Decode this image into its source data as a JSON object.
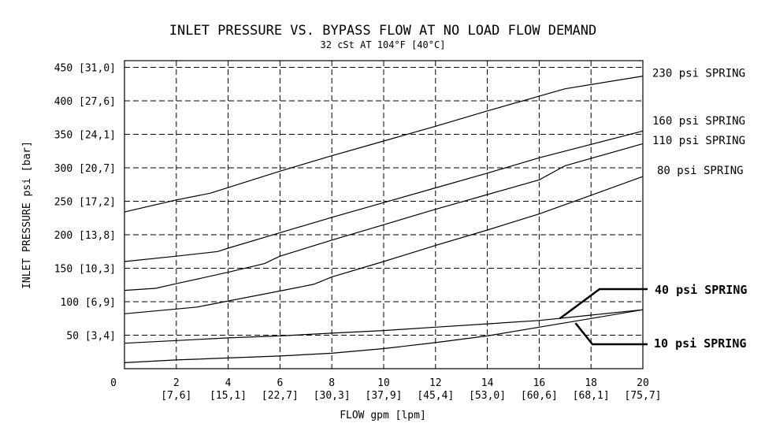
{
  "chart_data": {
    "type": "line",
    "title": "INLET PRESSURE VS. BYPASS FLOW AT NO LOAD FLOW DEMAND",
    "subtitle": "32 cSt AT 104°F [40°C]",
    "xlabel": "FLOW gpm [lpm]",
    "ylabel": "INLET PRESSURE psi [bar]",
    "xlim": [
      0,
      20
    ],
    "ylim": [
      0,
      460
    ],
    "grid": true,
    "x_ticks": [
      "0",
      "2",
      "4",
      "6",
      "8",
      "10",
      "12",
      "14",
      "16",
      "18",
      "20"
    ],
    "x_ticks_secondary": [
      "[7,6]",
      "[15,1]",
      "[22,7]",
      "[30,3]",
      "[37,9]",
      "[45,4]",
      "[53,0]",
      "[60,6]",
      "[68,1]",
      "[75,7]"
    ],
    "y_ticks": [
      "450 [31,0]",
      "400 [27,6]",
      "350 [24,1]",
      "300 [20,7]",
      "250 [17,2]",
      "200 [13,8]",
      "150 [10,3]",
      "100 [6,9]",
      "50 [3,4]"
    ],
    "series": [
      {
        "name": "230 psi SPRING",
        "x": [
          0,
          2,
          3.3,
          6,
          8,
          10,
          12,
          14,
          16,
          17,
          20
        ],
        "y": [
          234,
          252,
          262,
          295,
          318,
          340,
          362,
          385,
          407,
          418,
          437
        ]
      },
      {
        "name": "160 psi SPRING",
        "x": [
          0,
          2,
          3.6,
          4,
          6,
          8,
          10,
          12,
          14,
          16,
          17,
          20
        ],
        "y": [
          160,
          168,
          175,
          180,
          203,
          226,
          248,
          270,
          292,
          315,
          325,
          355
        ]
      },
      {
        "name": "110 psi SPRING",
        "x": [
          0,
          1.2,
          2,
          4,
          5.4,
          6,
          8,
          10,
          12,
          14,
          16,
          17,
          20
        ],
        "y": [
          117,
          120,
          127,
          144,
          157,
          168,
          192,
          215,
          238,
          260,
          282,
          303,
          336
        ]
      },
      {
        "name": "80 psi SPRING",
        "x": [
          0,
          2.8,
          4,
          6,
          7.3,
          8,
          10,
          12,
          14,
          16,
          18,
          20
        ],
        "y": [
          82,
          92,
          101,
          116,
          126,
          137,
          160,
          184,
          207,
          231,
          259,
          287
        ]
      },
      {
        "name": "40 psi SPRING",
        "x": [
          0,
          2,
          4,
          6,
          8,
          10,
          12,
          14,
          16,
          18,
          20
        ],
        "y": [
          38,
          42,
          46,
          49,
          53,
          57,
          62,
          67,
          72,
          80,
          88
        ]
      },
      {
        "name": "10 psi SPRING",
        "x": [
          0,
          2,
          4,
          6,
          8,
          10,
          12,
          14,
          16,
          18,
          20
        ],
        "y": [
          9,
          13,
          16,
          19,
          23,
          30,
          39,
          49,
          62,
          75,
          88
        ]
      }
    ]
  }
}
